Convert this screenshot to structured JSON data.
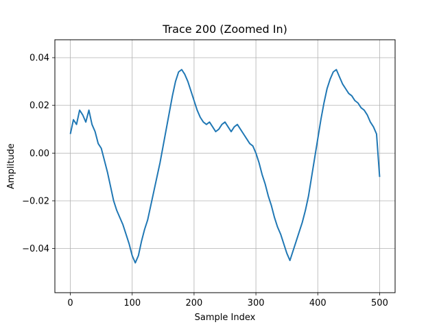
{
  "chart_data": {
    "type": "line",
    "title": "Trace 200 (Zoomed In)",
    "xlabel": "Sample Index",
    "ylabel": "Amplitude",
    "xlim": [
      -25,
      525
    ],
    "ylim": [
      -0.0585,
      0.0475
    ],
    "xticks": [
      0,
      100,
      200,
      300,
      400,
      500
    ],
    "xtick_labels": [
      "0",
      "100",
      "200",
      "300",
      "400",
      "500"
    ],
    "yticks": [
      -0.04,
      -0.02,
      0.0,
      0.02,
      0.04
    ],
    "ytick_labels": [
      "−0.04",
      "−0.02",
      "0.00",
      "0.02",
      "0.04"
    ],
    "grid": true,
    "series": [
      {
        "color": "#1f77b4",
        "x": [
          0,
          5,
          10,
          15,
          20,
          25,
          30,
          35,
          40,
          45,
          50,
          55,
          60,
          65,
          70,
          75,
          80,
          85,
          90,
          95,
          100,
          105,
          110,
          115,
          120,
          125,
          130,
          135,
          140,
          145,
          150,
          155,
          160,
          165,
          170,
          175,
          180,
          185,
          190,
          195,
          200,
          205,
          210,
          215,
          220,
          225,
          230,
          235,
          240,
          245,
          250,
          255,
          260,
          265,
          270,
          275,
          280,
          285,
          290,
          295,
          300,
          305,
          310,
          315,
          320,
          325,
          330,
          335,
          340,
          345,
          350,
          355,
          360,
          365,
          370,
          375,
          380,
          385,
          390,
          395,
          400,
          405,
          410,
          415,
          420,
          425,
          430,
          435,
          440,
          445,
          450,
          455,
          460,
          465,
          470,
          475,
          480,
          485,
          490,
          495,
          500
        ],
        "y": [
          0.008,
          0.014,
          0.012,
          0.018,
          0.016,
          0.013,
          0.018,
          0.012,
          0.009,
          0.004,
          0.002,
          -0.003,
          -0.008,
          -0.014,
          -0.02,
          -0.024,
          -0.027,
          -0.03,
          -0.034,
          -0.038,
          -0.043,
          -0.046,
          -0.043,
          -0.037,
          -0.032,
          -0.028,
          -0.022,
          -0.016,
          -0.01,
          -0.004,
          0.003,
          0.01,
          0.017,
          0.024,
          0.03,
          0.034,
          0.035,
          0.033,
          0.03,
          0.026,
          0.022,
          0.018,
          0.015,
          0.013,
          0.012,
          0.013,
          0.011,
          0.009,
          0.01,
          0.012,
          0.013,
          0.011,
          0.009,
          0.011,
          0.012,
          0.01,
          0.008,
          0.006,
          0.004,
          0.003,
          0.0,
          -0.004,
          -0.009,
          -0.013,
          -0.018,
          -0.022,
          -0.027,
          -0.031,
          -0.034,
          -0.038,
          -0.042,
          -0.045,
          -0.041,
          -0.037,
          -0.033,
          -0.029,
          -0.024,
          -0.018,
          -0.01,
          -0.002,
          0.006,
          0.014,
          0.021,
          0.027,
          0.031,
          0.034,
          0.035,
          0.032,
          0.029,
          0.027,
          0.025,
          0.024,
          0.022,
          0.021,
          0.019,
          0.018,
          0.016,
          0.013,
          0.011,
          0.008,
          -0.01
        ]
      }
    ]
  }
}
